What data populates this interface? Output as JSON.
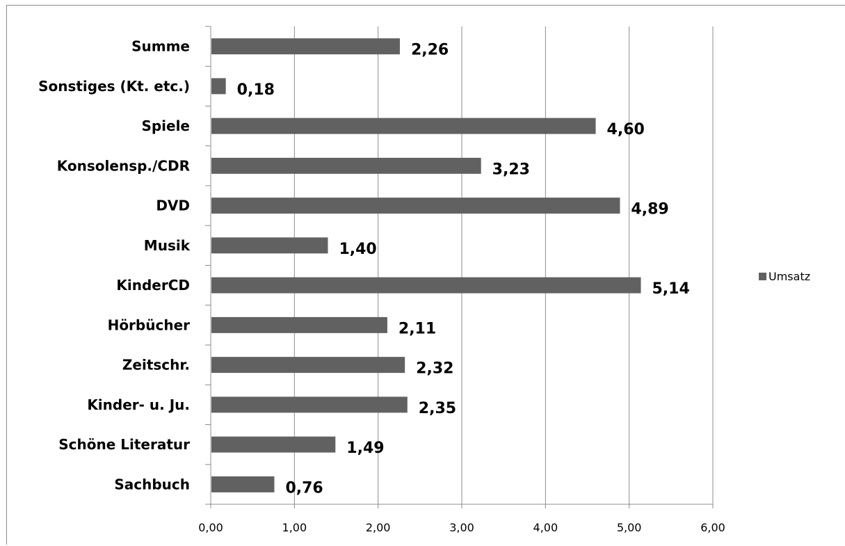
{
  "chart_data": {
    "type": "bar",
    "orientation": "horizontal",
    "categories": [
      "Sachbuch",
      "Schöne Literatur",
      "Kinder- u. Ju.",
      "Zeitschr.",
      "Hörbücher",
      "KinderCD",
      "Musik",
      "DVD",
      "Konsolensp./CDR",
      "Spiele",
      "Sonstiges (Kt. etc.)",
      "Summe"
    ],
    "series": [
      {
        "name": "Umsatz",
        "values": [
          0.76,
          1.49,
          2.35,
          2.32,
          2.11,
          5.14,
          1.4,
          4.89,
          3.23,
          4.6,
          0.18,
          2.26
        ],
        "labels": [
          "0,76",
          "1,49",
          "2,35",
          "2,32",
          "2,11",
          "5,14",
          "1,40",
          "4,89",
          "3,23",
          "4,60",
          "0,18",
          "2,26"
        ],
        "color": "#616161"
      }
    ],
    "x_ticks": [
      "0,00",
      "1,00",
      "2,00",
      "3,00",
      "4,00",
      "5,00",
      "6,00"
    ],
    "xlim": [
      0,
      6
    ],
    "grid": true,
    "legend_position": "right",
    "title": "",
    "xlabel": "",
    "ylabel": "",
    "colors": {
      "bar": "#616161",
      "grid": "#8c8c8c",
      "axis": "#8c8c8c"
    }
  }
}
